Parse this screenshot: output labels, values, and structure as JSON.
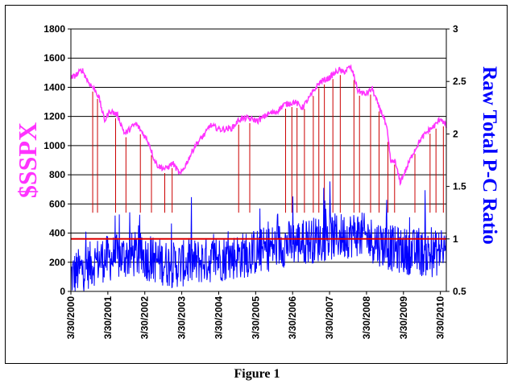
{
  "caption": "Figure 1",
  "colors": {
    "spx": "#ff33ff",
    "pc_ratio": "#0000ff",
    "signal_lines": "#cc0000",
    "threshold": "#dd0000",
    "grid": "#000000"
  },
  "chart_data": {
    "type": "line",
    "left_axis": {
      "label": "$SSPX",
      "ylim": [
        0,
        1800
      ],
      "ticks": [
        0,
        200,
        400,
        600,
        800,
        1000,
        1200,
        1400,
        1600,
        1800
      ]
    },
    "right_axis": {
      "label": "Raw Total P-C Ratio",
      "ylim": [
        0.5,
        3
      ],
      "ticks": [
        "0.5",
        "1",
        "1.5",
        "2",
        "2.5",
        "3"
      ]
    },
    "x_ticks": [
      "3/30/2000",
      "3/30/2001",
      "3/30/2002",
      "3/30/2003",
      "3/30/2004",
      "3/30/2005",
      "3/30/2006",
      "3/30/2007",
      "3/30/2008",
      "3/30/2009",
      "3/30/2010"
    ],
    "xlim": [
      2000.24,
      2010.4
    ],
    "grid": true,
    "threshold_line": {
      "axis": "right",
      "value": 1.0
    },
    "series": [
      {
        "name": "$SSPX",
        "axis": "left",
        "x": [
          2000.24,
          2000.4,
          2000.55,
          2000.7,
          2000.9,
          2001.0,
          2001.15,
          2001.3,
          2001.5,
          2001.7,
          2001.9,
          2002.0,
          2002.2,
          2002.35,
          2002.5,
          2002.6,
          2002.8,
          2003.0,
          2003.2,
          2003.35,
          2003.6,
          2003.9,
          2004.0,
          2004.3,
          2004.6,
          2004.8,
          2005.0,
          2005.3,
          2005.6,
          2005.8,
          2006.0,
          2006.3,
          2006.5,
          2006.7,
          2006.9,
          2007.0,
          2007.2,
          2007.5,
          2007.6,
          2007.8,
          2007.9,
          2008.0,
          2008.2,
          2008.4,
          2008.55,
          2008.7,
          2008.8,
          2008.9,
          2009.0,
          2009.15,
          2009.3,
          2009.5,
          2009.7,
          2009.9,
          2010.1,
          2010.25,
          2010.4
        ],
        "values": [
          1460,
          1490,
          1520,
          1440,
          1380,
          1330,
          1170,
          1240,
          1210,
          1080,
          1130,
          1150,
          1080,
          1020,
          900,
          860,
          840,
          880,
          800,
          870,
          1000,
          1090,
          1140,
          1110,
          1120,
          1180,
          1190,
          1170,
          1220,
          1230,
          1280,
          1300,
          1260,
          1330,
          1410,
          1440,
          1460,
          1520,
          1500,
          1540,
          1480,
          1380,
          1350,
          1390,
          1280,
          1200,
          1100,
          880,
          900,
          750,
          830,
          950,
          1040,
          1100,
          1140,
          1190,
          1130
        ]
      },
      {
        "name": "Raw Total P-C Ratio",
        "axis": "right",
        "x": [
          2000.24,
          2001.0,
          2002.0,
          2003.0,
          2004.0,
          2005.0,
          2006.0,
          2007.0,
          2008.0,
          2009.0,
          2010.0,
          2010.4
        ],
        "values": [
          0.65,
          0.8,
          0.85,
          0.75,
          0.8,
          0.85,
          0.95,
          1.0,
          1.05,
          0.9,
          0.85,
          0.9
        ]
      }
    ],
    "signal_dates": [
      2000.83,
      2000.96,
      2001.45,
      2001.73,
      2002.12,
      2002.42,
      2002.78,
      2002.98,
      2004.78,
      2005.08,
      2006.05,
      2006.22,
      2006.36,
      2006.56,
      2006.8,
      2006.95,
      2007.1,
      2007.33,
      2007.53,
      2007.9,
      2008.05,
      2008.35,
      2008.58,
      2008.82,
      2009.0,
      2009.55,
      2009.96,
      2010.12,
      2010.32
    ]
  }
}
